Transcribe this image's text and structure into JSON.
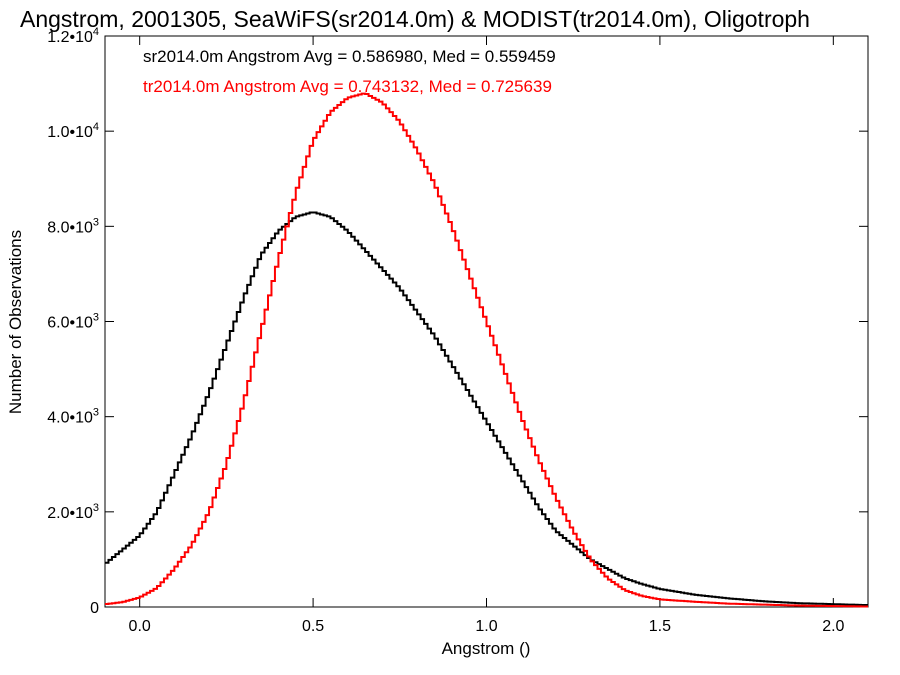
{
  "chart_data": {
    "type": "line",
    "title": "Angstrom, 2001305, SeaWiFS(sr2014.0m) & MODIST(tr2014.0m), Oligotroph",
    "xlabel": "Angstrom ()",
    "ylabel": "Number of Observations",
    "xlim": [
      -0.1,
      2.1
    ],
    "ylim": [
      0,
      12000
    ],
    "x_ticks": [
      {
        "value": 0.0,
        "label": "0.0"
      },
      {
        "value": 0.5,
        "label": "0.5"
      },
      {
        "value": 1.0,
        "label": "1.0"
      },
      {
        "value": 1.5,
        "label": "1.5"
      },
      {
        "value": 2.0,
        "label": "2.0"
      }
    ],
    "y_ticks": [
      {
        "value": 0,
        "mant": "0",
        "exp": ""
      },
      {
        "value": 2000,
        "mant": "2.0•10",
        "exp": "3"
      },
      {
        "value": 4000,
        "mant": "4.0•10",
        "exp": "3"
      },
      {
        "value": 6000,
        "mant": "6.0•10",
        "exp": "3"
      },
      {
        "value": 8000,
        "mant": "8.0•10",
        "exp": "3"
      },
      {
        "value": 10000,
        "mant": "1.0•10",
        "exp": "4"
      },
      {
        "value": 12000,
        "mant": "1.2•10",
        "exp": "4"
      }
    ],
    "grid": false,
    "step_style": true,
    "annotations": [
      {
        "text": "sr2014.0m Angstrom Avg = 0.586980, Med = 0.559459",
        "color": "#000000"
      },
      {
        "text": "tr2014.0m Angstrom Avg = 0.743132, Med = 0.725639",
        "color": "#ff0000"
      }
    ],
    "series": [
      {
        "color": "#000000",
        "x": [
          -0.1,
          -0.05,
          0.0,
          0.05,
          0.1,
          0.15,
          0.2,
          0.25,
          0.3,
          0.35,
          0.4,
          0.45,
          0.5,
          0.55,
          0.6,
          0.65,
          0.7,
          0.75,
          0.8,
          0.85,
          0.9,
          0.95,
          1.0,
          1.05,
          1.1,
          1.15,
          1.2,
          1.25,
          1.3,
          1.35,
          1.4,
          1.45,
          1.5,
          1.6,
          1.7,
          1.8,
          1.9,
          2.0,
          2.1
        ],
        "values": [
          900,
          1200,
          1500,
          2000,
          2800,
          3600,
          4500,
          5500,
          6500,
          7400,
          7900,
          8200,
          8300,
          8200,
          7900,
          7500,
          7100,
          6700,
          6200,
          5700,
          5100,
          4500,
          3900,
          3300,
          2700,
          2100,
          1600,
          1300,
          1000,
          800,
          600,
          480,
          380,
          260,
          180,
          120,
          80,
          60,
          40
        ]
      },
      {
        "color": "#ff0000",
        "x": [
          -0.1,
          -0.05,
          0.0,
          0.05,
          0.1,
          0.15,
          0.2,
          0.25,
          0.3,
          0.35,
          0.4,
          0.45,
          0.5,
          0.55,
          0.6,
          0.65,
          0.7,
          0.75,
          0.8,
          0.85,
          0.9,
          0.95,
          1.0,
          1.05,
          1.1,
          1.15,
          1.2,
          1.25,
          1.3,
          1.35,
          1.4,
          1.45,
          1.5,
          1.6,
          1.7,
          1.8,
          1.9,
          2.0,
          2.1
        ],
        "values": [
          60,
          100,
          200,
          400,
          800,
          1300,
          2000,
          3000,
          4300,
          5800,
          7300,
          8700,
          9800,
          10400,
          10700,
          10800,
          10600,
          10200,
          9600,
          8900,
          8000,
          7000,
          6000,
          5000,
          4000,
          3100,
          2300,
          1600,
          1000,
          600,
          350,
          230,
          160,
          110,
          70,
          50,
          30,
          20,
          10
        ]
      }
    ]
  }
}
